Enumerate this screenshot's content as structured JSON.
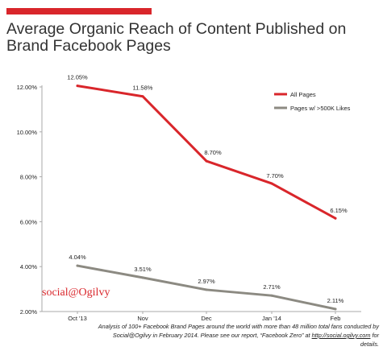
{
  "accent_color": "#d9262b",
  "title_line1": "Average Organic Reach of Content Published on",
  "title_line2": "Brand Facebook Pages",
  "logo_text": "social@Ogilvy",
  "footnote": {
    "line1": "Analysis of 100+ Facebook Brand Pages around the world with more than 48 million total fans conducted by",
    "line2_before": "Social@Ogilvy in February 2014. Please see our report, “Facebook Zero” at ",
    "link": "http://social.ogilvy.com",
    "line2_after": " for details."
  },
  "chart_data": {
    "type": "line",
    "categories": [
      "Oct '13",
      "Nov",
      "Dec",
      "Jan '14",
      "Feb"
    ],
    "ylim": [
      2,
      12
    ],
    "yticks": [
      2,
      4,
      6,
      8,
      10,
      12
    ],
    "ytick_labels": [
      "2.00%",
      "4.00%",
      "6.00%",
      "8.00%",
      "10.00%",
      "12.00%"
    ],
    "grid": false,
    "legend_position": "top-right",
    "series": [
      {
        "name": "All Pages",
        "color": "#d9262b",
        "values": [
          12.05,
          11.58,
          8.7,
          7.7,
          6.15
        ],
        "labels": [
          "12.05%",
          "11.58%",
          "8.70%",
          "7.70%",
          "6.15%"
        ]
      },
      {
        "name": "Pages w/ >500K Likes",
        "color": "#8c8a82",
        "values": [
          4.04,
          3.51,
          2.97,
          2.71,
          2.11
        ],
        "labels": [
          "4.04%",
          "3.51%",
          "2.97%",
          "2.71%",
          "2.11%"
        ]
      }
    ]
  }
}
